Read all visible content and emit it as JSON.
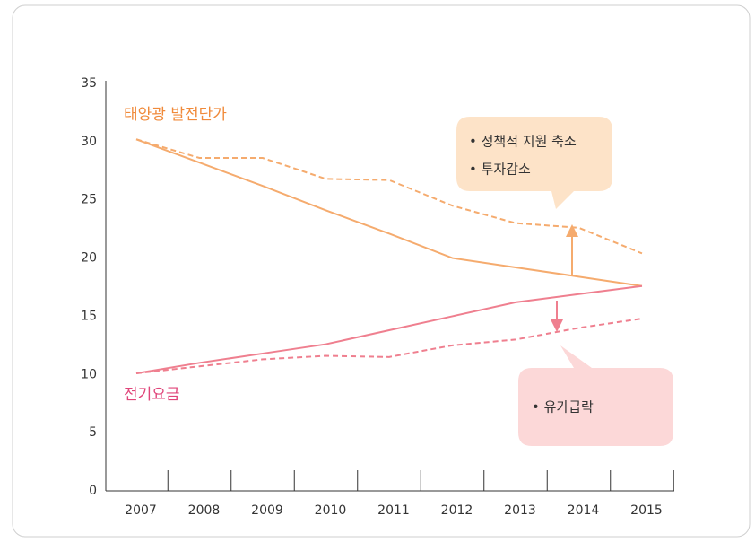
{
  "chart_data": {
    "type": "line",
    "categories": [
      "2007",
      "2008",
      "2009",
      "2010",
      "2011",
      "2012",
      "2013",
      "2014",
      "2015"
    ],
    "series": [
      {
        "color": "#f5ab6e",
        "dash": false,
        "values": [
          30.2,
          28.2,
          26.2,
          24.1,
          22.1,
          20.0,
          19.2,
          18.4,
          17.6
        ]
      },
      {
        "color": "#f5ab6e",
        "dash": true,
        "values": [
          30.2,
          28.6,
          28.6,
          26.8,
          26.7,
          24.5,
          23.0,
          22.6,
          20.4
        ]
      },
      {
        "color": "#ef7f8f",
        "dash": false,
        "values": [
          10.1,
          11.0,
          11.8,
          12.6,
          13.8,
          15.0,
          16.2,
          16.9,
          17.6
        ]
      },
      {
        "color": "#ef7f8f",
        "dash": true,
        "values": [
          10.1,
          10.7,
          11.3,
          11.6,
          11.5,
          12.5,
          13.0,
          14.0,
          14.8
        ]
      }
    ],
    "ylim": [
      0,
      35
    ],
    "yticks": [
      0,
      5,
      10,
      15,
      20,
      25,
      30,
      35
    ],
    "annotations": [
      "태양광 발전단가",
      "전기요금",
      "• 정책적 지원 축소",
      "• 투자감소",
      "• 유가급락"
    ]
  }
}
